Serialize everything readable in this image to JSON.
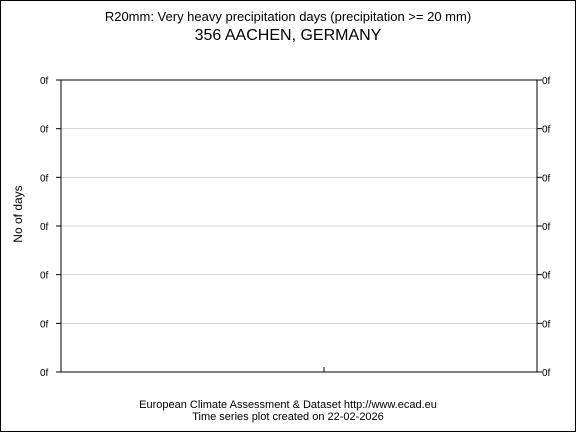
{
  "chart_data": {
    "type": "line",
    "title": "R20mm: Very heavy precipitation days (precipitation >= 20 mm)",
    "subtitle": "356 AACHEN, GERMANY",
    "ylabel": "No of days",
    "xlabel": "",
    "y_tick_labels": [
      "0f",
      "0f",
      "0f",
      "0f",
      "0f",
      "0f",
      "0f"
    ],
    "series": [],
    "grid": true,
    "legend": "none"
  },
  "footer": {
    "line1": "European Climate Assessment & Dataset  http://www.ecad.eu",
    "line2": "Time series plot created on 22-02-2026"
  },
  "colors": {
    "frame": "#000000",
    "grid": "#d3d3d3",
    "background": "#ffffff"
  }
}
